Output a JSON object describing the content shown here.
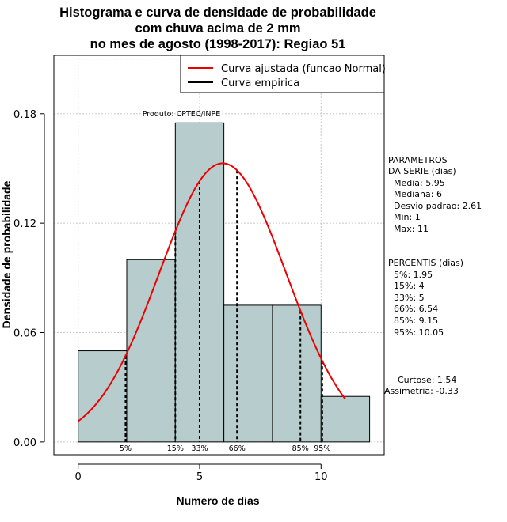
{
  "chart_data": {
    "type": "bar",
    "title": [
      "Histograma e curva de densidade de probabilidade",
      "com chuva acima de 2 mm",
      "no mes de agosto (1998-2017): Regiao 51"
    ],
    "xlabel": "Numero de dias",
    "ylabel": "Densidade de probabilidade",
    "xlim": [
      -1,
      12.6
    ],
    "ylim": [
      -0.007,
      0.212
    ],
    "xticks": [
      0,
      5,
      10
    ],
    "yticks": [
      "0.00",
      "0.06",
      "0.12",
      "0.18"
    ],
    "grid": true,
    "bins": [
      {
        "from": 0,
        "to": 2,
        "density": 0.05
      },
      {
        "from": 2,
        "to": 4,
        "density": 0.1
      },
      {
        "from": 4,
        "to": 6,
        "density": 0.175
      },
      {
        "from": 6,
        "to": 8,
        "density": 0.075
      },
      {
        "from": 8,
        "to": 10,
        "density": 0.075
      },
      {
        "from": 10,
        "to": 12,
        "density": 0.025
      }
    ],
    "normal_curve": {
      "mean": 5.95,
      "sd": 2.61,
      "from": 0,
      "to": 11,
      "color": "#ee0000"
    },
    "bar_color": "#b7cccc",
    "percentiles": [
      {
        "label": "5%",
        "x": 1.95
      },
      {
        "label": "15%",
        "x": 4
      },
      {
        "label": "33%",
        "x": 5
      },
      {
        "label": "66%",
        "x": 6.54
      },
      {
        "label": "85%",
        "x": 9.15
      },
      {
        "label": "95%",
        "x": 10.05
      }
    ],
    "legend": {
      "position": "top-right",
      "entries": [
        {
          "label": "Curva ajustada (funcao Normal)",
          "color": "#ee0000"
        },
        {
          "label": "Curva empirica",
          "color": "#000000"
        }
      ]
    },
    "credit": "Produto: CPTEC/INPE"
  },
  "side_panel": {
    "parametros_title": [
      "PARAMETROS",
      "DA SERIE (dias)"
    ],
    "parametros": [
      "Media: 5.95",
      "Mediana: 6",
      "Desvio padrao: 2.61",
      "Min: 1",
      "Max: 11"
    ],
    "percentis_title": "PERCENTIS (dias)",
    "percentis": [
      "5%: 1.95",
      "15%: 4",
      "33%: 5",
      "66%: 6.54",
      "85%: 9.15",
      "95%: 10.05"
    ],
    "curtose": "Curtose: 1.54",
    "assimetria": "Assimetria: -0.33"
  }
}
